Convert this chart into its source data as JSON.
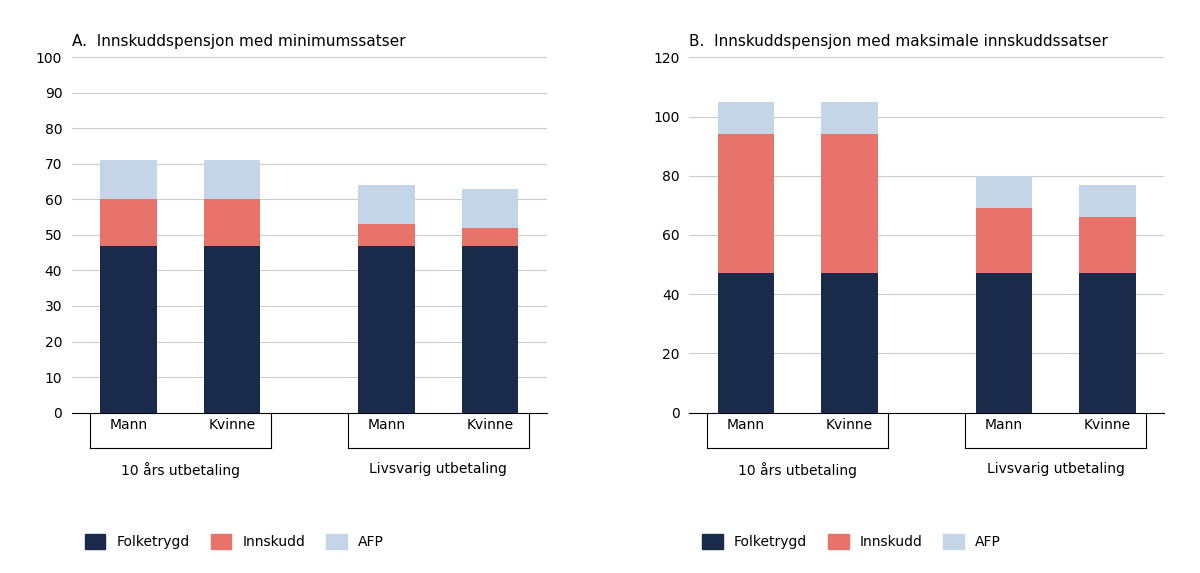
{
  "panel_A_title": "A.  Innskuddspensjon med minimumssatser",
  "panel_B_title": "B.  Innskuddspensjon med maksimale innskuddssatser",
  "groups": [
    "10 års utbetaling",
    "Livsvarig utbetaling"
  ],
  "bars": [
    "Mann",
    "Kvinne",
    "Mann",
    "Kvinne"
  ],
  "panel_A": {
    "folketrygd": [
      47,
      47,
      47,
      47
    ],
    "innskudd": [
      13,
      13,
      6,
      5
    ],
    "afp": [
      11,
      11,
      11,
      11
    ]
  },
  "panel_B": {
    "folketrygd": [
      47,
      47,
      47,
      47
    ],
    "innskudd": [
      47,
      47,
      22,
      19
    ],
    "afp": [
      11,
      11,
      11,
      11
    ]
  },
  "ylim_A": [
    0,
    100
  ],
  "ylim_B": [
    0,
    120
  ],
  "yticks_A": [
    0,
    10,
    20,
    30,
    40,
    50,
    60,
    70,
    80,
    90,
    100
  ],
  "yticks_B": [
    0,
    20,
    40,
    60,
    80,
    100,
    120
  ],
  "color_folketrygd": "#1a2a4a",
  "color_innskudd": "#e8736b",
  "color_afp": "#c5d5e8",
  "legend_labels": [
    "Folketrygd",
    "Innskudd",
    "AFP"
  ],
  "bar_width": 0.55,
  "background_color": "#ffffff",
  "x_positions": [
    0,
    1,
    2.5,
    3.5
  ],
  "xlim": [
    -0.55,
    4.05
  ]
}
